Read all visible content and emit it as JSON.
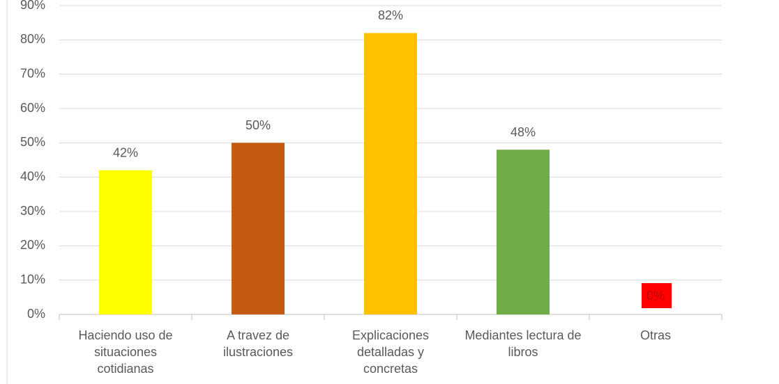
{
  "chart_data": {
    "type": "bar",
    "categories": [
      "Haciendo uso de situaciones cotidianas",
      "A travez de ilustraciones",
      "Explicaciones detalladas y concretas",
      "Mediantes lectura de libros",
      "Otras"
    ],
    "values": [
      42,
      50,
      82,
      48,
      0
    ],
    "value_labels": [
      "42%",
      "50%",
      "82%",
      "48%",
      "0%"
    ],
    "colors": [
      "#ffff00",
      "#c55a11",
      "#ffc000",
      "#70ad47",
      "#ff0000"
    ],
    "ylim": [
      0,
      90
    ],
    "yticks": [
      {
        "value": 0,
        "label": "0%"
      },
      {
        "value": 10,
        "label": "10%"
      },
      {
        "value": 20,
        "label": "20%"
      },
      {
        "value": 30,
        "label": "30%"
      },
      {
        "value": 40,
        "label": "40%"
      },
      {
        "value": 50,
        "label": "50%"
      },
      {
        "value": 60,
        "label": "60%"
      },
      {
        "value": 70,
        "label": "70%"
      },
      {
        "value": 80,
        "label": "80%"
      },
      {
        "value": 90,
        "label": "90%"
      }
    ],
    "grid": true
  }
}
